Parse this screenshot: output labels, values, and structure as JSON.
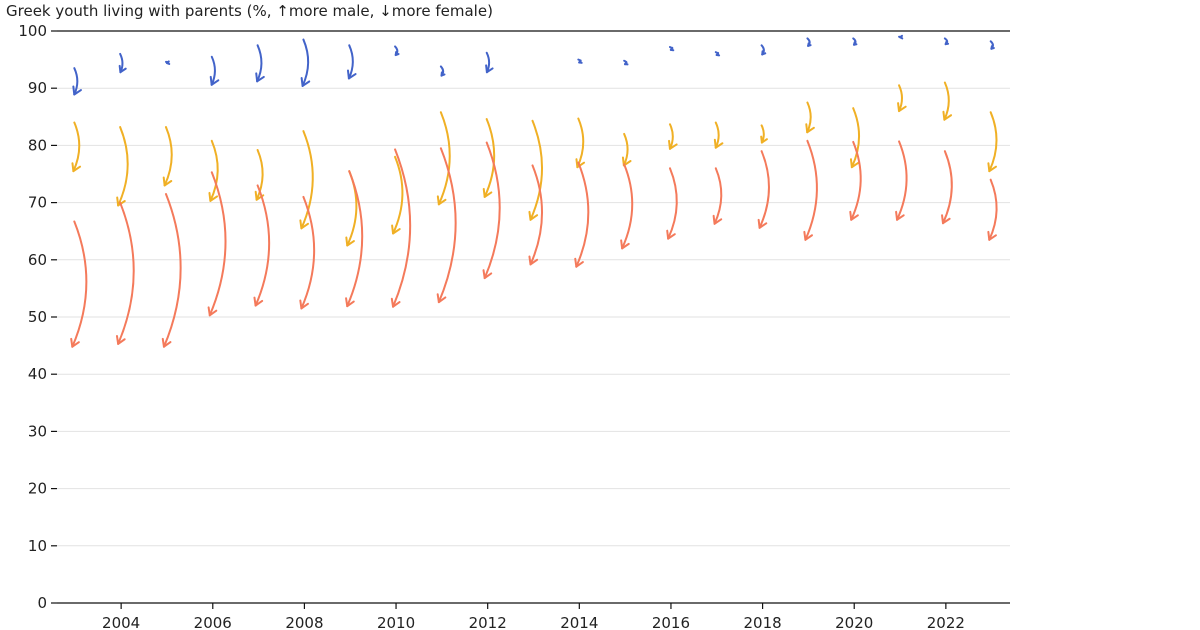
{
  "chart_data": {
    "type": "line",
    "title": "Greek youth living with parents (%, ↑more male, ↓more female)",
    "ylim": [
      0,
      100
    ],
    "yticks": [
      0,
      10,
      20,
      30,
      40,
      50,
      60,
      70,
      80,
      90,
      100
    ],
    "xticks": [
      2004,
      2006,
      2008,
      2010,
      2012,
      2014,
      2016,
      2018,
      2020,
      2022
    ],
    "xlim": [
      2002.6,
      2023.4
    ],
    "encoding": "arrow per year from male value to female value",
    "series": [
      {
        "color": "#4263c9",
        "years": [
          2003,
          2004,
          2005,
          2006,
          2007,
          2008,
          2009,
          2010,
          2011,
          2012,
          2014,
          2015,
          2016,
          2017,
          2018,
          2019,
          2020,
          2021,
          2022,
          2023
        ],
        "male": [
          93.5,
          96.0,
          94.6,
          95.5,
          97.5,
          98.5,
          97.5,
          97.3,
          93.8,
          96.2,
          95.0,
          94.8,
          97.2,
          96.3,
          97.5,
          98.7,
          98.7,
          99.0,
          98.7,
          98.2
        ],
        "female": [
          88.9,
          92.8,
          94.4,
          90.6,
          91.2,
          90.4,
          91.7,
          95.8,
          92.2,
          92.8,
          94.5,
          94.2,
          96.7,
          95.8,
          95.9,
          97.4,
          97.6,
          98.9,
          97.7,
          96.9
        ]
      },
      {
        "color": "#f0b025",
        "years": [
          2003,
          2004,
          2005,
          2006,
          2007,
          2008,
          2009,
          2010,
          2011,
          2012,
          2013,
          2014,
          2015,
          2016,
          2017,
          2018,
          2019,
          2020,
          2021,
          2022,
          2023
        ],
        "male": [
          84.0,
          83.2,
          83.2,
          80.8,
          79.2,
          82.5,
          75.5,
          78.0,
          85.8,
          84.6,
          84.3,
          84.7,
          82.0,
          83.7,
          84.0,
          83.5,
          87.5,
          86.5,
          90.5,
          91.0,
          85.8
        ],
        "female": [
          75.5,
          69.5,
          73.0,
          70.3,
          70.5,
          65.5,
          62.5,
          64.6,
          69.7,
          71.0,
          67.0,
          76.2,
          76.5,
          79.4,
          79.6,
          80.5,
          82.3,
          76.2,
          86.0,
          84.5,
          75.5
        ]
      },
      {
        "color": "#f47a5b",
        "years": [
          2003,
          2004,
          2005,
          2006,
          2007,
          2008,
          2009,
          2010,
          2011,
          2012,
          2013,
          2014,
          2015,
          2016,
          2017,
          2018,
          2019,
          2020,
          2021,
          2022,
          2023
        ],
        "male": [
          66.7,
          70.0,
          71.5,
          75.3,
          73.0,
          71.0,
          75.5,
          79.3,
          79.5,
          80.5,
          76.5,
          77.0,
          76.7,
          76.0,
          76.0,
          79.0,
          80.8,
          80.6,
          80.7,
          79.0,
          74.0
        ],
        "female": [
          44.8,
          45.3,
          44.8,
          50.3,
          52.0,
          51.5,
          51.9,
          51.8,
          52.6,
          56.8,
          59.2,
          58.8,
          62.0,
          63.7,
          66.3,
          65.6,
          63.5,
          67.0,
          67.0,
          66.4,
          63.5
        ]
      }
    ]
  }
}
